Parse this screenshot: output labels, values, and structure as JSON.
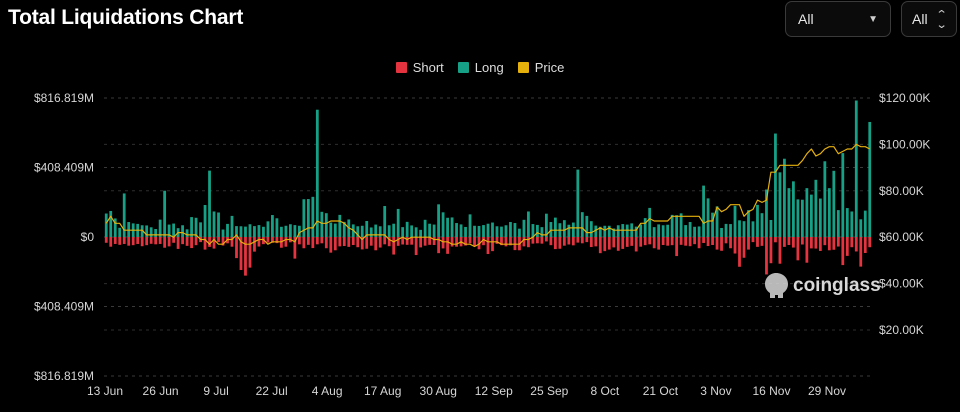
{
  "header": {
    "title": "Total Liquidations Chart",
    "select_1": "All",
    "select_2": "All"
  },
  "legend": [
    {
      "label": "Short",
      "color": "#e5343f"
    },
    {
      "label": "Long",
      "color": "#16a085"
    },
    {
      "label": "Price",
      "color": "#e5b00c"
    }
  ],
  "watermark": "coinglass",
  "chart_data": {
    "type": "bar",
    "title": "Total Liquidations Chart",
    "x_ticks": [
      "13 Jun",
      "26 Jun",
      "9 Jul",
      "22 Jul",
      "4 Aug",
      "17 Aug",
      "30 Aug",
      "12 Sep",
      "25 Sep",
      "8 Oct",
      "21 Oct",
      "3 Nov",
      "16 Nov",
      "29 Nov"
    ],
    "y_left_ticks": [
      "$816.819M",
      "$408.409M",
      "$0",
      "$408.409M",
      "$816.819M"
    ],
    "y_left_range": [
      -816.819,
      816.819
    ],
    "y_left_unit": "M USD",
    "y_right_ticks": [
      "$120.00K",
      "$100.00K",
      "$80.00K",
      "$60.00K",
      "$40.00K",
      "$20.00K"
    ],
    "y_right_range": [
      20000,
      120000
    ],
    "grid": true,
    "legend_position": "top-center",
    "series": [
      {
        "name": "Long",
        "color": "#16a085",
        "values": [
          138,
          153,
          109,
          54,
          256,
          88,
          80,
          77,
          69,
          68,
          57,
          47,
          102,
          272,
          73,
          79,
          52,
          69,
          45,
          117,
          113,
          86,
          188,
          390,
          150,
          144,
          44,
          77,
          124,
          64,
          63,
          61,
          75,
          64,
          70,
          60,
          92,
          129,
          110,
          60,
          66,
          75,
          70,
          66,
          222,
          223,
          236,
          748,
          148,
          140,
          85,
          79,
          130,
          89,
          103,
          74,
          63,
          66,
          94,
          56,
          73,
          63,
          182,
          69,
          78,
          165,
          58,
          89,
          68,
          57,
          42,
          101,
          78,
          73,
          192,
          145,
          113,
          115,
          82,
          74,
          59,
          133,
          66,
          65,
          70,
          78,
          85,
          63,
          61,
          69,
          88,
          82,
          49,
          101,
          150,
          76,
          71,
          58,
          137,
          88,
          114,
          81,
          99,
          72,
          85,
          396,
          146,
          124,
          93,
          67,
          60,
          66,
          66,
          50,
          69,
          76,
          73,
          80,
          61,
          74,
          111,
          171,
          58,
          74,
          69,
          72,
          130,
          128,
          139,
          70,
          88,
          60,
          62,
          302,
          227,
          143,
          180,
          53,
          77,
          76,
          183,
          98,
          93,
          158,
          92,
          189,
          140,
          279,
          100,
          608,
          380,
          460,
          287,
          327,
          221,
          219,
          287,
          249,
          336,
          226,
          445,
          287,
          389,
          158,
          493,
          170,
          150,
          802,
          104,
          155,
          676
        ]
      },
      {
        "name": "Short",
        "color": "#e5343f",
        "values": [
          34,
          57,
          41,
          46,
          41,
          51,
          48,
          41,
          54,
          48,
          40,
          43,
          41,
          63,
          55,
          34,
          70,
          42,
          52,
          65,
          48,
          30,
          74,
          58,
          68,
          30,
          50,
          37,
          57,
          124,
          194,
          227,
          180,
          86,
          56,
          42,
          33,
          34,
          36,
          63,
          57,
          31,
          127,
          43,
          66,
          46,
          65,
          43,
          37,
          66,
          92,
          78,
          55,
          53,
          58,
          47,
          60,
          73,
          69,
          51,
          78,
          62,
          43,
          54,
          103,
          52,
          44,
          46,
          45,
          106,
          61,
          51,
          46,
          47,
          95,
          67,
          99,
          56,
          57,
          55,
          50,
          37,
          56,
          72,
          48,
          100,
          83,
          40,
          48,
          55,
          49,
          77,
          78,
          55,
          60,
          39,
          37,
          39,
          26,
          48,
          71,
          69,
          51,
          44,
          49,
          33,
          37,
          30,
          59,
          55,
          95,
          83,
          74,
          61,
          81,
          70,
          58,
          52,
          85,
          57,
          48,
          43,
          66,
          74,
          47,
          51,
          48,
          112,
          46,
          51,
          54,
          42,
          66,
          35,
          53,
          47,
          74,
          81,
          37,
          66,
          97,
          175,
          122,
          74,
          30,
          58,
          52,
          220,
          154,
          31,
          157,
          58,
          47,
          62,
          137,
          44,
          151,
          67,
          68,
          82,
          48,
          78,
          75,
          56,
          165,
          111,
          60,
          85,
          174,
          94,
          60
        ]
      },
      {
        "name": "Price",
        "color": "#e5b00c",
        "values": [
          66,
          69,
          66,
          66,
          63,
          63,
          63,
          63,
          63,
          61,
          61,
          61,
          61,
          61,
          61,
          60,
          62,
          62,
          61,
          61,
          61,
          59,
          59,
          57,
          59,
          57,
          57,
          59,
          59,
          61,
          58,
          57,
          57,
          58,
          59,
          59,
          57,
          58,
          58,
          58,
          59,
          59,
          58,
          62,
          63,
          64,
          64,
          67,
          66,
          66,
          67,
          67,
          67,
          66,
          64,
          63,
          61,
          59,
          61,
          61,
          61,
          61,
          61,
          59,
          58,
          59,
          60,
          59,
          60,
          60,
          60,
          60,
          60,
          59,
          59,
          58,
          58,
          57,
          57,
          58,
          57,
          57,
          56,
          57,
          59,
          58,
          58,
          58,
          57,
          57,
          57,
          57,
          57,
          59,
          59,
          60,
          62,
          61,
          61,
          63,
          63,
          63,
          63,
          64,
          64,
          64,
          64,
          62,
          62,
          63,
          64,
          63,
          64,
          63,
          63,
          63,
          63,
          63,
          63,
          66,
          66,
          68,
          67,
          67,
          67,
          67,
          69,
          69,
          69,
          69,
          69,
          69,
          69,
          66,
          67,
          67,
          73,
          71,
          72,
          74,
          74,
          74,
          69,
          71,
          72,
          76,
          75,
          76,
          88,
          88,
          91,
          91,
          91,
          91,
          91,
          93,
          96,
          98,
          95,
          96,
          98,
          99,
          99,
          96,
          97,
          98,
          98,
          100,
          99,
          99,
          98
        ]
      }
    ]
  }
}
